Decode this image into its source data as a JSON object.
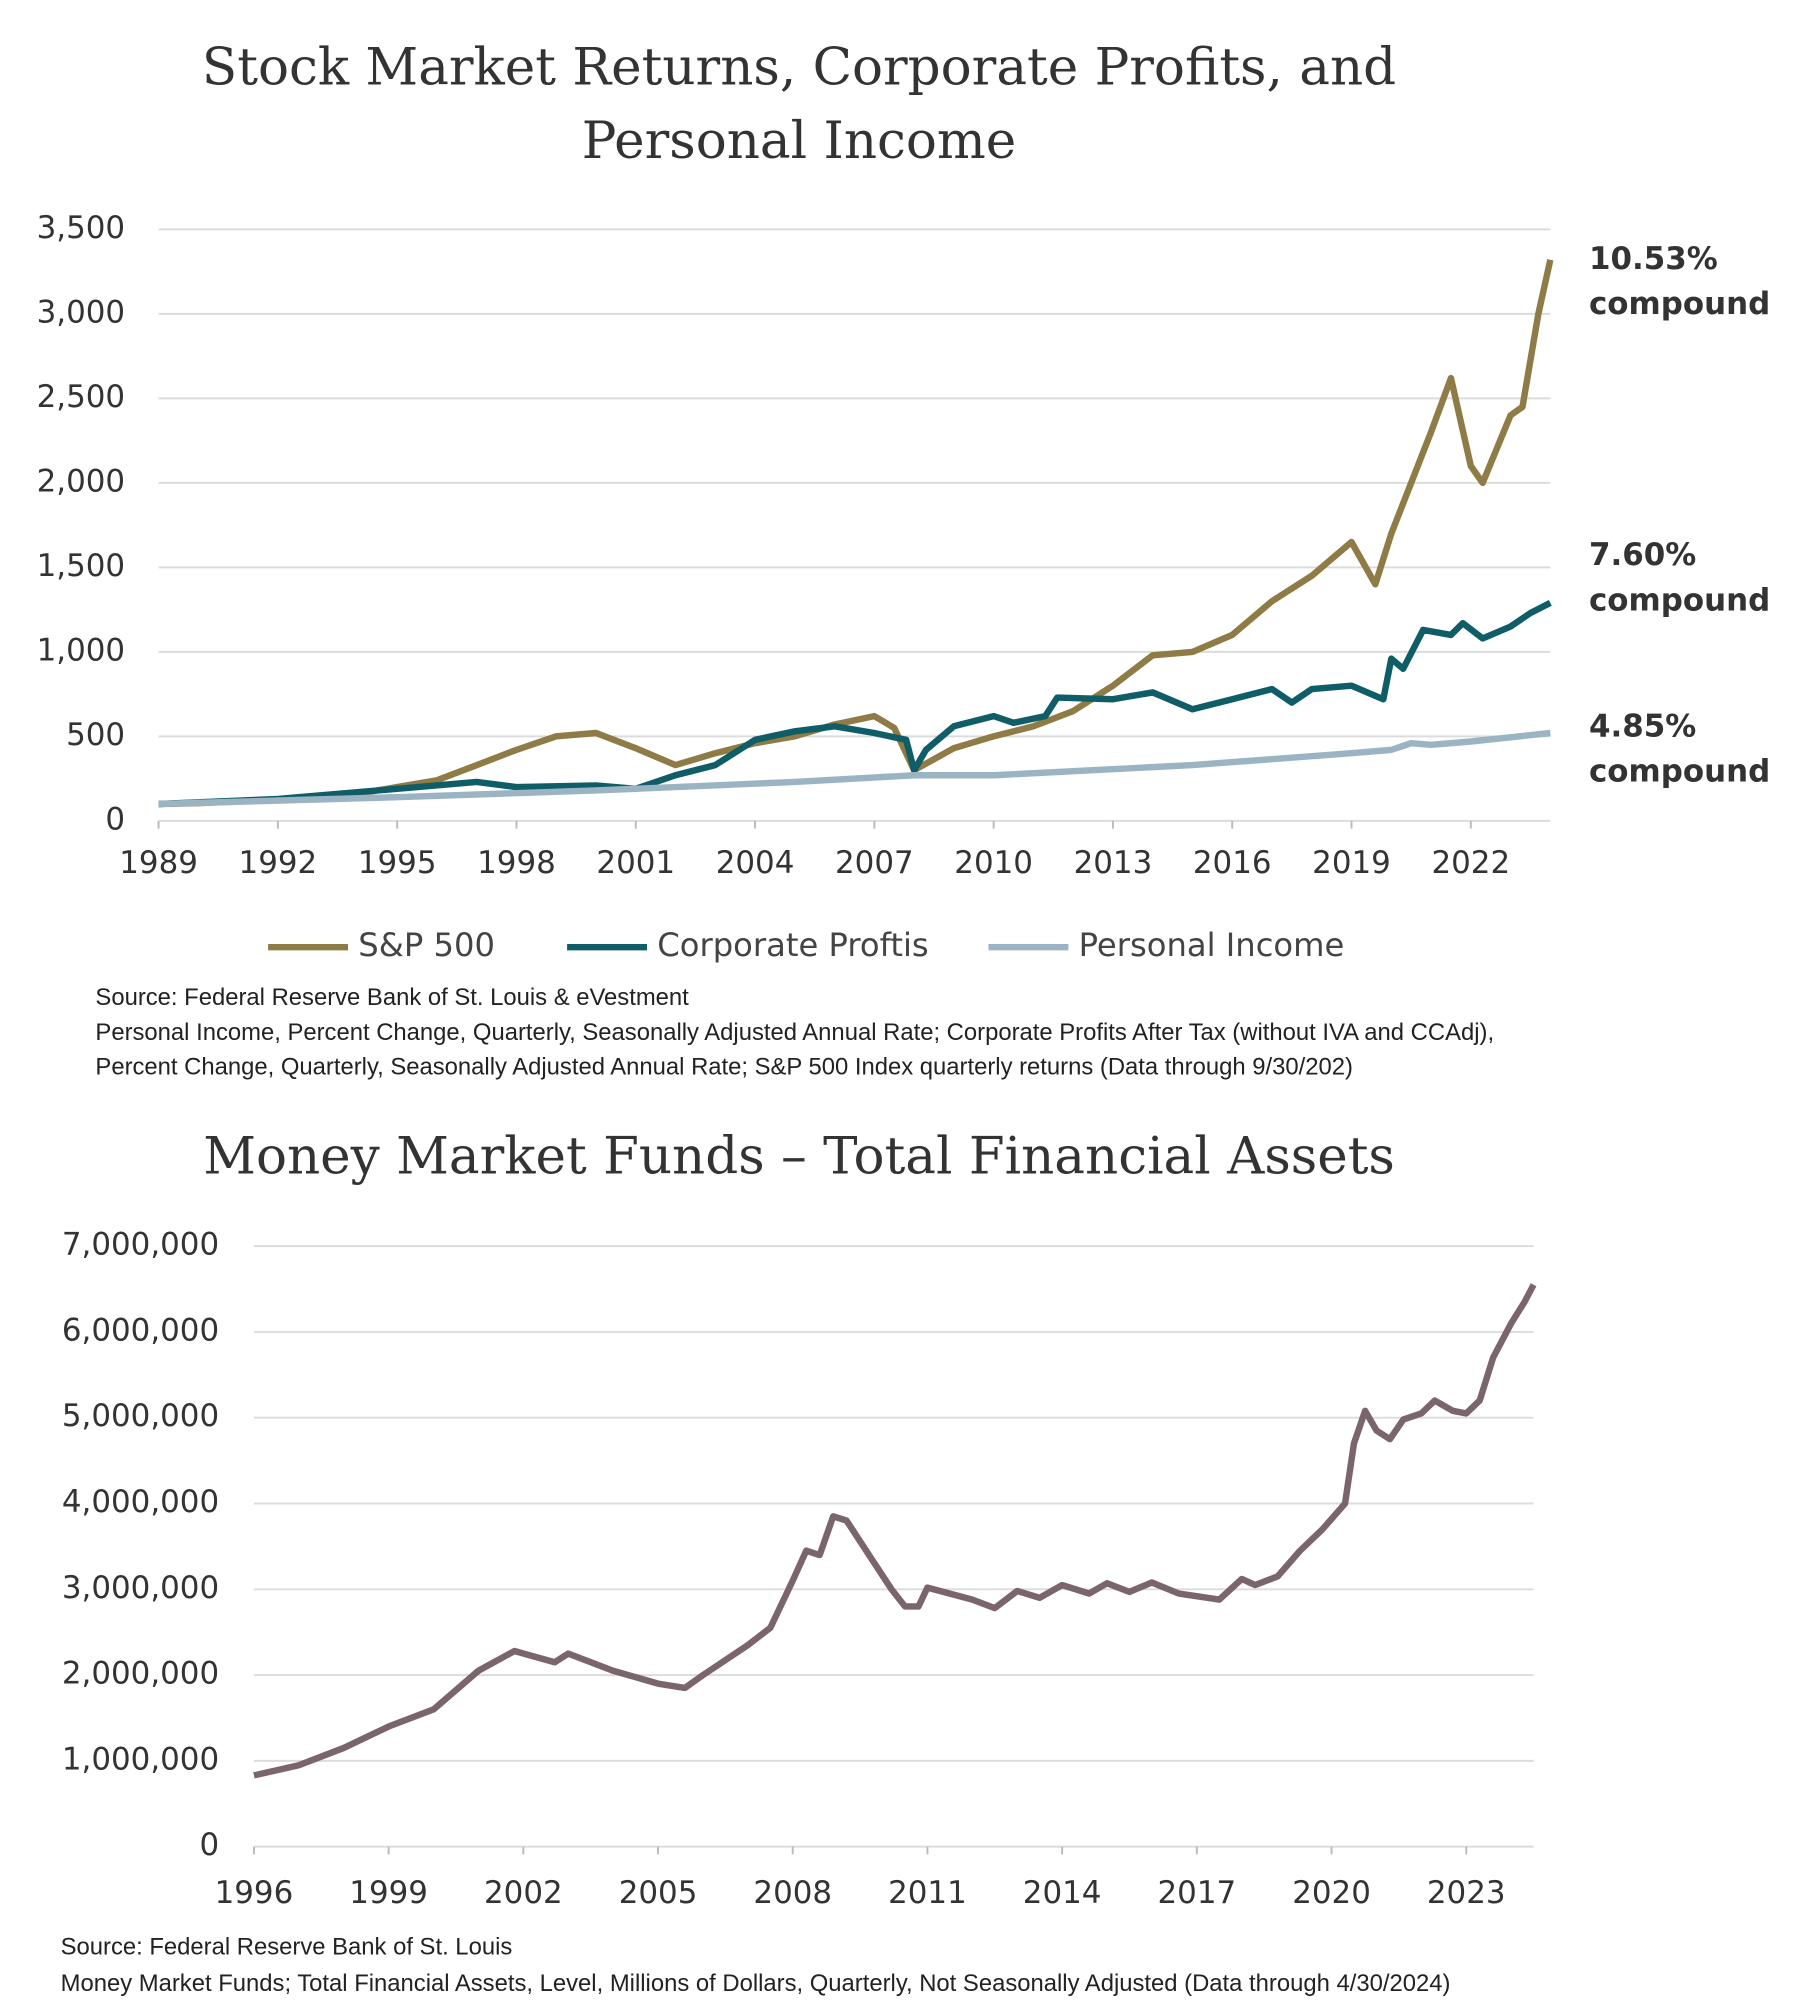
{
  "chart_data": [
    {
      "type": "line",
      "title": [
        "Stock Market Returns, Corporate Profits, and",
        "Personal Income"
      ],
      "xlim": [
        1989,
        2024
      ],
      "xticks": [
        1989,
        1992,
        1995,
        1998,
        2001,
        2004,
        2007,
        2010,
        2013,
        2016,
        2019,
        2022
      ],
      "ylim": [
        0,
        3500
      ],
      "yticks": [
        0,
        500,
        {
          "value": 1000,
          "label": "1,000"
        },
        {
          "value": 1500,
          "label": "1,500"
        },
        {
          "value": 2000,
          "label": "2,000"
        },
        {
          "value": 2500,
          "label": "2,500"
        },
        {
          "value": 3000,
          "label": "3,000"
        },
        {
          "value": 3500,
          "label": "3,500"
        }
      ],
      "grid": true,
      "legend": "bottom",
      "series": [
        {
          "name": "S&P 500",
          "color": "#8f7b45",
          "annotation": [
            "10.53%",
            "compound"
          ],
          "x": [
            1989,
            1990,
            1991,
            1992,
            1993,
            1994,
            1995,
            1996,
            1997,
            1998,
            1999,
            2000,
            2001,
            2002,
            2003,
            2004,
            2005,
            2006,
            2007,
            2007.5,
            2008,
            2009,
            2010,
            2011,
            2012,
            2013,
            2014,
            2015,
            2016,
            2017,
            2018,
            2019,
            2019.6,
            2020,
            2021,
            2021.5,
            2022,
            2022.3,
            2023,
            2023.3,
            2023.7,
            2024
          ],
          "values": [
            100,
            105,
            115,
            125,
            140,
            160,
            200,
            240,
            330,
            420,
            500,
            520,
            430,
            330,
            400,
            460,
            500,
            570,
            620,
            550,
            300,
            430,
            500,
            560,
            650,
            800,
            980,
            1000,
            1100,
            1300,
            1450,
            1650,
            1400,
            1700,
            2300,
            2620,
            2100,
            2000,
            2400,
            2450,
            3000,
            3320
          ]
        },
        {
          "name": "Corporate Proftis",
          "color": "#0f5d66",
          "annotation": [
            "7.60%",
            "compound"
          ],
          "x": [
            1989,
            1992,
            1995,
            1997,
            1998,
            2000,
            2001,
            2002,
            2003,
            2004,
            2005,
            2006,
            2007,
            2007.8,
            2008,
            2008.3,
            2009,
            2010,
            2010.5,
            2011.3,
            2011.6,
            2013,
            2014,
            2015,
            2016,
            2017,
            2017.5,
            2018,
            2019,
            2019.8,
            2020,
            2020.3,
            2020.8,
            2021.5,
            2021.8,
            2022.3,
            2023,
            2023.5,
            2024
          ],
          "values": [
            100,
            130,
            190,
            230,
            200,
            210,
            190,
            270,
            330,
            480,
            530,
            560,
            520,
            480,
            300,
            420,
            560,
            620,
            580,
            620,
            730,
            720,
            760,
            660,
            720,
            780,
            700,
            780,
            800,
            720,
            960,
            900,
            1130,
            1100,
            1170,
            1080,
            1150,
            1230,
            1290
          ]
        },
        {
          "name": "Personal Income",
          "color": "#9bb4c4",
          "annotation": [
            "4.85%",
            "compound"
          ],
          "x": [
            1989,
            1995,
            2000,
            2005,
            2008,
            2010,
            2015,
            2019,
            2020,
            2020.5,
            2021,
            2022,
            2024
          ],
          "values": [
            100,
            140,
            180,
            230,
            270,
            270,
            330,
            400,
            420,
            460,
            450,
            470,
            520
          ]
        }
      ],
      "source": [
        "Source: Federal Reserve Bank of St. Louis & eVestment",
        "Personal Income, Percent Change, Quarterly, Seasonally Adjusted Annual Rate; Corporate Profits After Tax (without IVA and CCAdj),",
        "Percent Change, Quarterly, Seasonally Adjusted Annual Rate; S&P 500 Index quarterly returns (Data through 9/30/202)"
      ]
    },
    {
      "type": "line",
      "title": [
        "Money Market Funds – Total Financial Assets"
      ],
      "xlim": [
        1996,
        2024.5
      ],
      "xticks": [
        1996,
        1999,
        2002,
        2005,
        2008,
        2011,
        2014,
        2017,
        2020,
        2023
      ],
      "ylim": [
        0,
        7000000
      ],
      "yticks": [
        0,
        {
          "value": 1000000,
          "label": "1,000,000"
        },
        {
          "value": 2000000,
          "label": "2,000,000"
        },
        {
          "value": 3000000,
          "label": "3,000,000"
        },
        {
          "value": 4000000,
          "label": "4,000,000"
        },
        {
          "value": 5000000,
          "label": "5,000,000"
        },
        {
          "value": 6000000,
          "label": "6,000,000"
        },
        {
          "value": 7000000,
          "label": "7,000,000"
        }
      ],
      "grid": true,
      "series": [
        {
          "color": "#7a656c",
          "x": [
            1996,
            1997,
            1998,
            1999,
            2000,
            2001,
            2001.8,
            2002.7,
            2003,
            2004,
            2005,
            2005.6,
            2006,
            2007,
            2007.5,
            2008,
            2008.3,
            2008.6,
            2008.9,
            2009.2,
            2009.7,
            2010.2,
            2010.5,
            2010.8,
            2011,
            2012,
            2012.5,
            2013,
            2013.5,
            2014,
            2014.6,
            2015,
            2015.5,
            2016,
            2016.6,
            2017.5,
            2018,
            2018.3,
            2018.8,
            2019.3,
            2019.8,
            2020.3,
            2020.5,
            2020.75,
            2021,
            2021.3,
            2021.6,
            2022,
            2022.3,
            2022.7,
            2023,
            2023.3,
            2023.6,
            2024,
            2024.3,
            2024.5
          ],
          "values": [
            830000,
            950000,
            1150000,
            1400000,
            1600000,
            2050000,
            2280000,
            2150000,
            2250000,
            2050000,
            1900000,
            1850000,
            2000000,
            2350000,
            2550000,
            3100000,
            3450000,
            3400000,
            3850000,
            3800000,
            3400000,
            3000000,
            2800000,
            2800000,
            3020000,
            2880000,
            2780000,
            2980000,
            2900000,
            3050000,
            2950000,
            3070000,
            2970000,
            3080000,
            2950000,
            2880000,
            3120000,
            3050000,
            3150000,
            3450000,
            3700000,
            4000000,
            4700000,
            5080000,
            4850000,
            4750000,
            4980000,
            5050000,
            5200000,
            5080000,
            5050000,
            5200000,
            5700000,
            6100000,
            6350000,
            6550000
          ]
        }
      ],
      "source": [
        "Source: Federal Reserve Bank of St. Louis",
        "Money Market Funds; Total Financial Assets, Level, Millions of Dollars, Quarterly, Not Seasonally Adjusted (Data through 4/30/2024)"
      ]
    }
  ]
}
